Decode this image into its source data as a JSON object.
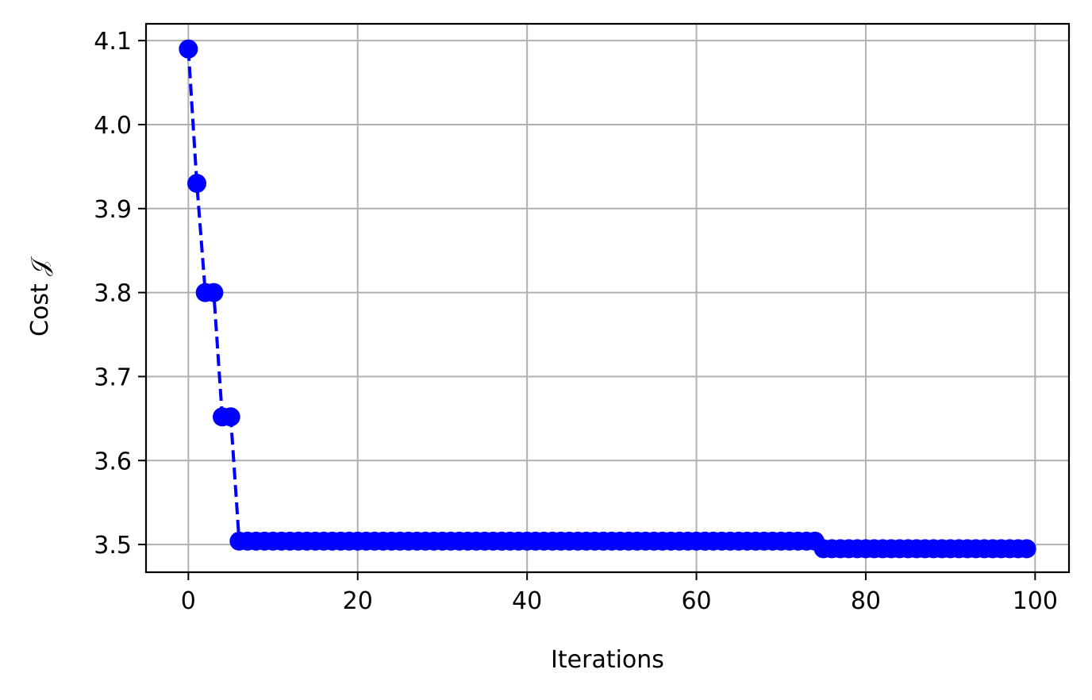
{
  "chart_data": {
    "type": "line",
    "xlabel": "Iterations",
    "ylabel": "Cost 𝒥",
    "xlim": [
      -5,
      104
    ],
    "ylim": [
      3.467,
      4.12
    ],
    "grid": true,
    "x_ticks": [
      0,
      20,
      40,
      60,
      80,
      100
    ],
    "x_tick_labels": [
      "0",
      "20",
      "40",
      "60",
      "80",
      "100"
    ],
    "y_ticks": [
      3.5,
      3.6,
      3.7,
      3.8,
      3.9,
      4.0,
      4.1
    ],
    "y_tick_labels": [
      "3.5",
      "3.6",
      "3.7",
      "3.8",
      "3.9",
      "4.0",
      "4.1"
    ],
    "series": [
      {
        "color": "#0000ff",
        "line_style": "dashed",
        "marker": "circle",
        "segments": [
          {
            "x_range": [
              0,
              5
            ],
            "values": [
              4.09,
              3.93,
              3.8,
              3.8,
              3.652,
              3.652
            ]
          },
          {
            "x_range": [
              6,
              74
            ],
            "constant": 3.504
          },
          {
            "x_range": [
              75,
              99
            ],
            "constant": 3.495
          }
        ]
      }
    ]
  }
}
